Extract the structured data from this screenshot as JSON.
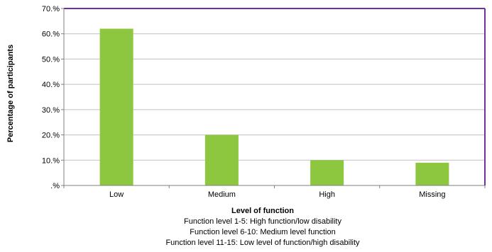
{
  "chart_data": {
    "type": "bar",
    "categories": [
      "Low",
      "Medium",
      "High",
      "Missing"
    ],
    "values": [
      62,
      20,
      10,
      9
    ],
    "ylim": [
      0,
      70
    ],
    "yticks": [
      0,
      10,
      20,
      30,
      40,
      50,
      60,
      70
    ],
    "ytick_labels": [
      ".%",
      "10.%",
      "20.%",
      "30.%",
      "40.%",
      "50.%",
      "60.%",
      "70.%"
    ],
    "xlabel": "Level of function",
    "ylabel": "Percentage of participants",
    "notes": [
      "Function level 1-5: High function/low disability",
      "Function level 6-10: Medium level function",
      "Function level 11-15: Low level of function/high disability"
    ],
    "grid": "horizontal",
    "bar_color": "#8dc63f",
    "frame_top_color": "#7030a0",
    "frame_right_color": "#7030a0"
  }
}
